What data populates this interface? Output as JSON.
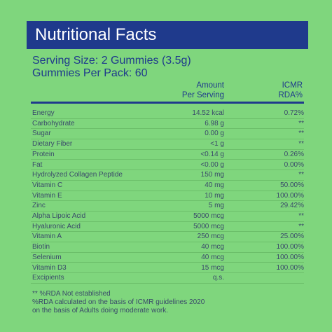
{
  "header": {
    "title": "Nutritional Facts",
    "serving_size": "Serving Size: 2 Gummies (3.5g)",
    "per_pack": "Gummies Per Pack: 60"
  },
  "table": {
    "columns": [
      "Amount\nPer Serving",
      "ICMR\nRDA%"
    ],
    "rows": [
      {
        "name": "Energy",
        "amount": "14.52 kcal",
        "rda": "0.72%"
      },
      {
        "name": "Carbohydrate",
        "amount": "6.98 g",
        "rda": "**"
      },
      {
        "name": "Sugar",
        "amount": "0.00 g",
        "rda": "**"
      },
      {
        "name": "Dietary Fiber",
        "amount": "<1 g",
        "rda": "**"
      },
      {
        "name": "Protein",
        "amount": "<0.14 g",
        "rda": "0.26%"
      },
      {
        "name": "Fat",
        "amount": "<0.00 g",
        "rda": "0.00%"
      },
      {
        "name": "Hydrolyzed Collagen Peptide",
        "amount": "150 mg",
        "rda": "**"
      },
      {
        "name": "Vitamin C",
        "amount": "40 mg",
        "rda": "50.00%"
      },
      {
        "name": "Vitamin E",
        "amount": "10 mg",
        "rda": "100.00%"
      },
      {
        "name": "Zinc",
        "amount": "5 mg",
        "rda": "29.42%"
      },
      {
        "name": "Alpha Lipoic Acid",
        "amount": "5000 mcg",
        "rda": "**"
      },
      {
        "name": "Hyaluronic Acid",
        "amount": "5000 mcg",
        "rda": "**"
      },
      {
        "name": "Vitamin A",
        "amount": "250 mcg",
        "rda": "25.00%"
      },
      {
        "name": "Biotin",
        "amount": "40 mcg",
        "rda": "100.00%"
      },
      {
        "name": "Selenium",
        "amount": "40 mcg",
        "rda": "100.00%"
      },
      {
        "name": "Vitamin D3",
        "amount": "15 mcg",
        "rda": "100.00%"
      },
      {
        "name": "Excipients",
        "amount": "q.s."
      }
    ]
  },
  "footnotes": [
    "** %RDA Not established",
    "%RDA calculated on the basis of ICMR guidelines 2020",
    "on the basis of Adults doing moderate work."
  ]
}
